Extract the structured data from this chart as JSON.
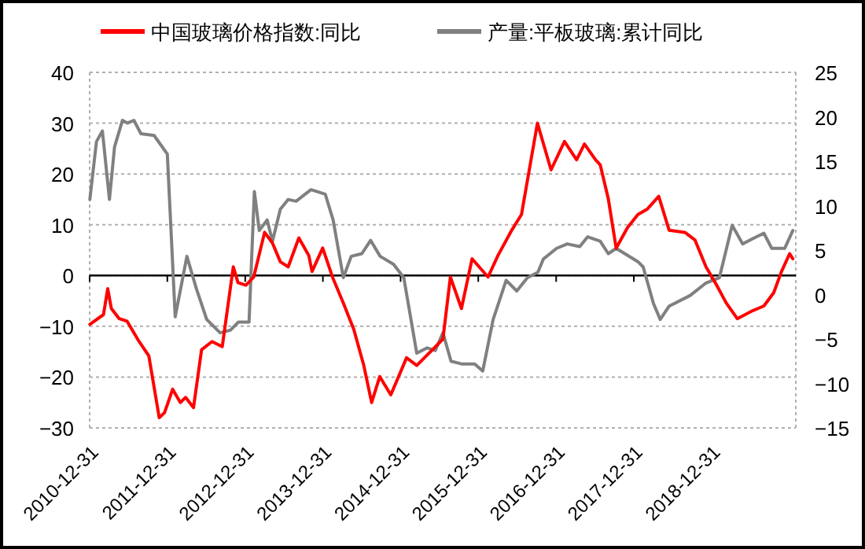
{
  "chart_data": {
    "type": "line",
    "legend": "top",
    "grid": "y",
    "marker": "none",
    "line_style": "solid",
    "xlim": [
      "2010-12-31",
      "2020-01-31"
    ],
    "xticks": [
      "2010-12-31",
      "2011-12-31",
      "2012-12-31",
      "2013-12-31",
      "2014-12-31",
      "2015-12-31",
      "2016-12-31",
      "2017-12-31",
      "2018-12-31"
    ],
    "ylim": [
      -30,
      40
    ],
    "yticks": [
      -30,
      -20,
      -10,
      0,
      10,
      20,
      30,
      40
    ],
    "y2lim": [
      -15,
      25
    ],
    "y2ticks": [
      -15,
      -10,
      -5,
      0,
      5,
      10,
      15,
      20,
      25
    ],
    "series": [
      {
        "name": "中国玻璃价格指数:同比",
        "color": "#ff0000",
        "x": [
          "2011-01-01",
          "2011-03-06",
          "2011-03-26",
          "2011-04-12",
          "2011-05-19",
          "2011-06-25",
          "2011-08-16",
          "2011-10-05",
          "2011-11-23",
          "2011-12-18",
          "2012-01-25",
          "2012-03-01",
          "2012-03-26",
          "2012-05-02",
          "2012-06-09",
          "2012-07-28",
          "2012-09-14",
          "2012-11-05",
          "2012-11-27",
          "2013-01-03",
          "2013-02-09",
          "2013-04-01",
          "2013-05-08",
          "2013-06-14",
          "2013-07-21",
          "2013-09-09",
          "2013-10-26",
          "2013-11-10",
          "2013-12-30",
          "2014-02-14",
          "2014-04-06",
          "2014-05-25",
          "2014-07-11",
          "2014-08-17",
          "2014-09-24",
          "2014-11-15",
          "2015-01-28",
          "2015-03-17",
          "2015-05-30",
          "2015-07-18",
          "2015-08-22",
          "2015-10-13",
          "2015-12-02",
          "2016-02-15",
          "2016-04-01",
          "2016-06-05",
          "2016-07-21",
          "2016-10-04",
          "2016-12-07",
          "2017-02-08",
          "2017-04-06",
          "2017-05-13",
          "2017-07-04",
          "2017-07-26",
          "2017-09-02",
          "2017-10-09",
          "2017-12-01",
          "2018-01-19",
          "2018-03-05",
          "2018-04-27",
          "2018-06-15",
          "2018-08-28",
          "2018-10-14",
          "2018-12-05",
          "2019-01-24",
          "2019-03-10",
          "2019-05-01",
          "2019-07-14",
          "2019-09-03",
          "2019-10-19",
          "2019-11-25",
          "2020-01-02",
          "2020-01-17"
        ],
        "values": [
          -9.6,
          -7.7,
          -2.6,
          -6.5,
          -8.5,
          -9,
          -12.7,
          -15.8,
          -28,
          -27,
          -22.4,
          -25,
          -24,
          -26,
          -14.6,
          -13,
          -14,
          1.7,
          -1.4,
          -1.9,
          -0.3,
          8.5,
          6.4,
          2.7,
          1.7,
          7.4,
          3.9,
          0.8,
          5.4,
          -0.3,
          -5.4,
          -10.6,
          -17.7,
          -25,
          -19.9,
          -23.5,
          -16.2,
          -17.7,
          -14.6,
          -12.5,
          -0.3,
          -6.5,
          3.3,
          -0.3,
          3.9,
          8.9,
          12,
          30,
          20.8,
          26.4,
          22.8,
          25.9,
          22.8,
          21.8,
          15.1,
          5.4,
          9.4,
          12,
          13.1,
          15.6,
          8.9,
          8.5,
          7,
          1.7,
          -1.9,
          -5.4,
          -8.5,
          -6.9,
          -6,
          -3.4,
          0.8,
          4.3,
          3.3
        ]
      },
      {
        "name": "产量:平板玻璃:累计同比",
        "color": "#808080",
        "axis": "y2",
        "x": [
          "2011-01-01",
          "2011-02-01",
          "2011-03-01",
          "2011-04-03",
          "2011-04-27",
          "2011-06-03",
          "2011-06-27",
          "2011-07-27",
          "2011-08-29",
          "2011-10-30",
          "2011-12-31",
          "2012-02-06",
          "2012-04-01",
          "2012-05-15",
          "2012-07-03",
          "2012-09-04",
          "2012-10-23",
          "2012-11-29",
          "2013-01-18",
          "2013-02-12",
          "2013-03-07",
          "2013-04-13",
          "2013-05-08",
          "2013-06-14",
          "2013-07-21",
          "2013-08-27",
          "2013-11-05",
          "2014-01-11",
          "2014-02-17",
          "2014-04-06",
          "2014-05-13",
          "2014-07-02",
          "2014-08-12",
          "2014-09-26",
          "2014-11-28",
          "2015-01-15",
          "2015-03-17",
          "2015-05-05",
          "2015-06-12",
          "2015-07-18",
          "2015-08-25",
          "2015-10-13",
          "2015-12-14",
          "2016-01-21",
          "2016-03-10",
          "2016-05-10",
          "2016-06-29",
          "2016-08-18",
          "2016-10-06",
          "2016-11-01",
          "2017-01-02",
          "2017-02-21",
          "2017-04-21",
          "2017-05-28",
          "2017-07-26",
          "2017-09-02",
          "2017-10-09",
          "2018-01-19",
          "2018-02-13",
          "2018-04-02",
          "2018-05-04",
          "2018-06-15",
          "2018-09-22",
          "2018-12-05",
          "2019-02-06",
          "2019-04-07",
          "2019-05-26",
          "2019-07-14",
          "2019-09-03",
          "2019-10-10",
          "2019-12-10",
          "2020-01-17"
        ],
        "values": [
          10.7,
          17.2,
          18.4,
          10.7,
          16.6,
          19.6,
          19.3,
          19.6,
          18.1,
          17.9,
          15.8,
          -2.5,
          4.3,
          0.7,
          -2.8,
          -4.3,
          -4,
          -3.1,
          -3.1,
          11.6,
          7.2,
          8.4,
          6,
          9.6,
          10.7,
          10.5,
          11.8,
          11.3,
          8.4,
          1.9,
          4.3,
          4.6,
          6.1,
          4.3,
          3.4,
          1.9,
          -6.6,
          -6,
          -6.3,
          -4.3,
          -7.5,
          -7.8,
          -7.8,
          -8.6,
          -2.8,
          1.6,
          0.4,
          1.9,
          2.5,
          4,
          5.2,
          5.7,
          5.4,
          6.5,
          6,
          4.6,
          5.2,
          3.7,
          3.1,
          -1,
          -2.8,
          -1.3,
          -0.1,
          1.3,
          1.9,
          7.8,
          5.7,
          6.3,
          6.9,
          5.2,
          5.2,
          7.2
        ]
      }
    ]
  }
}
